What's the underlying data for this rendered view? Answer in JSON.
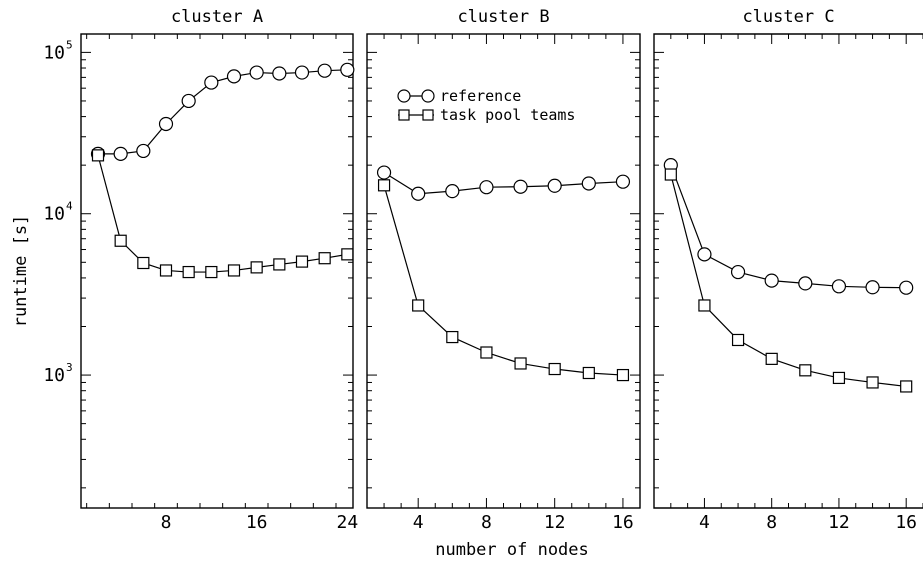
{
  "figure": {
    "ylabel": "runtime [s]",
    "xlabel": "number of nodes",
    "legend_position": "top-left of second panel"
  },
  "chart_data": [
    {
      "type": "line",
      "title": "cluster A",
      "xlim": [
        0.5,
        24.5
      ],
      "xticks": [
        8,
        16,
        24
      ],
      "ylim": [
        150,
        130000
      ],
      "yscale": "log",
      "yticks_major": [
        1000,
        10000,
        100000
      ],
      "ytick_labels": [
        {
          "base": "10",
          "exp": "3"
        },
        {
          "base": "10",
          "exp": "4"
        },
        {
          "base": "10",
          "exp": "5"
        }
      ],
      "grid": false,
      "series": [
        {
          "name": "reference",
          "marker": "circle",
          "x": [
            2,
            4,
            6,
            8,
            10,
            12,
            14,
            16,
            18,
            20,
            22,
            24
          ],
          "y": [
            23500,
            23500,
            24500,
            36000,
            50000,
            65000,
            71000,
            75000,
            74000,
            75000,
            77000,
            78000
          ]
        },
        {
          "name": "task pool teams",
          "marker": "square",
          "x": [
            2,
            4,
            6,
            8,
            10,
            12,
            14,
            16,
            18,
            20,
            22,
            24
          ],
          "y": [
            23000,
            6800,
            4950,
            4450,
            4350,
            4350,
            4450,
            4650,
            4850,
            5050,
            5300,
            5600
          ]
        }
      ]
    },
    {
      "type": "line",
      "title": "cluster B",
      "xlim": [
        1,
        17
      ],
      "xticks": [
        4,
        8,
        12,
        16
      ],
      "ylim": [
        150,
        130000
      ],
      "yscale": "log",
      "grid": false,
      "legend": [
        "reference",
        "task pool teams"
      ],
      "series": [
        {
          "name": "reference",
          "marker": "circle",
          "x": [
            2,
            4,
            6,
            8,
            10,
            12,
            14,
            16
          ],
          "y": [
            18000,
            13300,
            13800,
            14600,
            14700,
            14900,
            15400,
            15800
          ]
        },
        {
          "name": "task pool teams",
          "marker": "square",
          "x": [
            2,
            4,
            6,
            8,
            10,
            12,
            14,
            16
          ],
          "y": [
            15000,
            2700,
            1720,
            1380,
            1180,
            1090,
            1030,
            1000
          ]
        }
      ]
    },
    {
      "type": "line",
      "title": "cluster C",
      "xlim": [
        1,
        17
      ],
      "xticks": [
        4,
        8,
        12,
        16
      ],
      "ylim": [
        150,
        130000
      ],
      "yscale": "log",
      "grid": false,
      "series": [
        {
          "name": "reference",
          "marker": "circle",
          "x": [
            2,
            4,
            6,
            8,
            10,
            12,
            14,
            16
          ],
          "y": [
            20000,
            5600,
            4350,
            3850,
            3700,
            3550,
            3500,
            3480
          ]
        },
        {
          "name": "task pool teams",
          "marker": "square",
          "x": [
            2,
            4,
            6,
            8,
            10,
            12,
            14,
            16
          ],
          "y": [
            17500,
            2700,
            1650,
            1260,
            1070,
            960,
            900,
            850
          ]
        }
      ]
    }
  ]
}
